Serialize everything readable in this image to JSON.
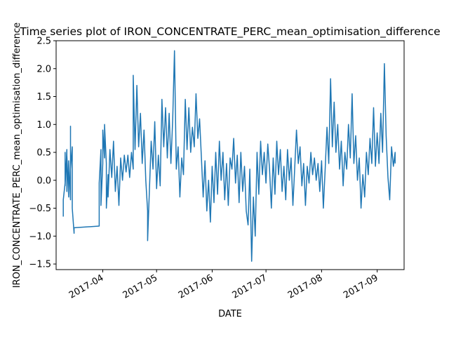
{
  "chart_data": {
    "type": "line",
    "title": "Time series plot of IRON_CONCENTRATE_PERC_mean_optimisation_difference",
    "xlabel": "DATE",
    "ylabel": "IRON_CONCENTRATE_PERC_mean_optimisation_difference",
    "xlim": [
      "2017-03-06",
      "2017-09-16"
    ],
    "ylim": [
      -1.6,
      2.5
    ],
    "grid": false,
    "legend": "none",
    "x_ticks": [
      "2017-04",
      "2017-05",
      "2017-06",
      "2017-07",
      "2017-08",
      "2017-09"
    ],
    "y_ticks": [
      "−1.5",
      "−1.0",
      "−0.5",
      "0.0",
      "0.5",
      "1.0",
      "1.5",
      "2.0",
      "2.5"
    ],
    "series": [
      {
        "color": "#1f77b4",
        "points": [
          [
            "2017-03-10",
            -0.65
          ],
          [
            "2017-03-10",
            -0.35
          ],
          [
            "2017-03-11",
            -0.05
          ],
          [
            "2017-03-11",
            0.5
          ],
          [
            "2017-03-11",
            -0.1
          ],
          [
            "2017-03-12",
            0.55
          ],
          [
            "2017-03-12",
            -0.2
          ],
          [
            "2017-03-12",
            0.45
          ],
          [
            "2017-03-13",
            -0.3
          ],
          [
            "2017-03-13",
            0.35
          ],
          [
            "2017-03-14",
            -0.35
          ],
          [
            "2017-03-14",
            0.97
          ],
          [
            "2017-03-14",
            0.2
          ],
          [
            "2017-03-15",
            0.6
          ],
          [
            "2017-03-15",
            -0.5
          ],
          [
            "2017-03-16",
            -0.95
          ],
          [
            "2017-03-16",
            -0.85
          ],
          [
            "2017-03-30",
            -0.82
          ],
          [
            "2017-03-30",
            -0.05
          ],
          [
            "2017-03-31",
            0.55
          ],
          [
            "2017-03-31",
            -0.45
          ],
          [
            "2017-04-01",
            0.3
          ],
          [
            "2017-04-01",
            0.9
          ],
          [
            "2017-04-02",
            0.4
          ],
          [
            "2017-04-02",
            1.0
          ],
          [
            "2017-04-03",
            0.3
          ],
          [
            "2017-04-03",
            -0.5
          ],
          [
            "2017-04-04",
            0.1
          ],
          [
            "2017-04-04",
            -0.3
          ],
          [
            "2017-04-05",
            0.55
          ],
          [
            "2017-04-06",
            0.05
          ],
          [
            "2017-04-07",
            0.7
          ],
          [
            "2017-04-08",
            -0.2
          ],
          [
            "2017-04-09",
            0.25
          ],
          [
            "2017-04-10",
            -0.45
          ],
          [
            "2017-04-11",
            0.4
          ],
          [
            "2017-04-12",
            0.0
          ],
          [
            "2017-04-13",
            0.45
          ],
          [
            "2017-04-14",
            0.15
          ],
          [
            "2017-04-15",
            0.45
          ],
          [
            "2017-04-16",
            0.05
          ],
          [
            "2017-04-17",
            0.5
          ],
          [
            "2017-04-18",
            0.2
          ],
          [
            "2017-04-18",
            1.88
          ],
          [
            "2017-04-19",
            0.55
          ],
          [
            "2017-04-20",
            1.7
          ],
          [
            "2017-04-21",
            0.6
          ],
          [
            "2017-04-22",
            1.2
          ],
          [
            "2017-04-23",
            0.3
          ],
          [
            "2017-04-24",
            0.9
          ],
          [
            "2017-04-25",
            0.0
          ],
          [
            "2017-04-26",
            -0.55
          ],
          [
            "2017-04-26",
            -1.08
          ],
          [
            "2017-04-27",
            -0.2
          ],
          [
            "2017-04-28",
            0.7
          ],
          [
            "2017-04-29",
            0.2
          ],
          [
            "2017-04-30",
            1.05
          ],
          [
            "2017-05-01",
            -0.15
          ],
          [
            "2017-05-02",
            0.45
          ],
          [
            "2017-05-03",
            -0.1
          ],
          [
            "2017-05-04",
            1.45
          ],
          [
            "2017-05-05",
            0.6
          ],
          [
            "2017-05-06",
            1.3
          ],
          [
            "2017-05-07",
            0.4
          ],
          [
            "2017-05-08",
            1.2
          ],
          [
            "2017-05-09",
            0.3
          ],
          [
            "2017-05-10",
            1.1
          ],
          [
            "2017-05-11",
            2.32
          ],
          [
            "2017-05-12",
            0.2
          ],
          [
            "2017-05-13",
            0.6
          ],
          [
            "2017-05-14",
            -0.3
          ],
          [
            "2017-05-15",
            0.4
          ],
          [
            "2017-05-16",
            0.1
          ],
          [
            "2017-05-17",
            1.45
          ],
          [
            "2017-05-18",
            0.55
          ],
          [
            "2017-05-19",
            1.3
          ],
          [
            "2017-05-20",
            0.5
          ],
          [
            "2017-05-21",
            0.95
          ],
          [
            "2017-05-22",
            0.6
          ],
          [
            "2017-05-23",
            1.55
          ],
          [
            "2017-05-24",
            0.75
          ],
          [
            "2017-05-25",
            1.1
          ],
          [
            "2017-05-26",
            0.4
          ],
          [
            "2017-05-27",
            -0.3
          ],
          [
            "2017-05-28",
            0.35
          ],
          [
            "2017-05-29",
            -0.55
          ],
          [
            "2017-05-30",
            0.0
          ],
          [
            "2017-05-31",
            -0.75
          ],
          [
            "2017-06-01",
            0.25
          ],
          [
            "2017-06-02",
            -0.4
          ],
          [
            "2017-06-03",
            0.5
          ],
          [
            "2017-06-04",
            -0.25
          ],
          [
            "2017-06-05",
            0.7
          ],
          [
            "2017-06-06",
            0.0
          ],
          [
            "2017-06-07",
            0.5
          ],
          [
            "2017-06-08",
            -0.35
          ],
          [
            "2017-06-09",
            0.3
          ],
          [
            "2017-06-10",
            -0.45
          ],
          [
            "2017-06-11",
            0.4
          ],
          [
            "2017-06-12",
            0.2
          ],
          [
            "2017-06-13",
            0.75
          ],
          [
            "2017-06-14",
            -0.05
          ],
          [
            "2017-06-15",
            0.45
          ],
          [
            "2017-06-16",
            -0.4
          ],
          [
            "2017-06-17",
            0.5
          ],
          [
            "2017-06-18",
            -0.2
          ],
          [
            "2017-06-19",
            0.25
          ],
          [
            "2017-06-20",
            -0.55
          ],
          [
            "2017-06-21",
            -0.8
          ],
          [
            "2017-06-22",
            0.2
          ],
          [
            "2017-06-23",
            -1.45
          ],
          [
            "2017-06-24",
            -0.3
          ],
          [
            "2017-06-25",
            -1.0
          ],
          [
            "2017-06-26",
            0.5
          ],
          [
            "2017-06-27",
            -0.25
          ],
          [
            "2017-06-28",
            0.7
          ],
          [
            "2017-06-29",
            0.1
          ],
          [
            "2017-06-30",
            0.5
          ],
          [
            "2017-07-01",
            -0.05
          ],
          [
            "2017-07-02",
            0.65
          ],
          [
            "2017-07-03",
            0.2
          ],
          [
            "2017-07-04",
            -0.5
          ],
          [
            "2017-07-05",
            0.4
          ],
          [
            "2017-07-06",
            -0.25
          ],
          [
            "2017-07-07",
            0.7
          ],
          [
            "2017-07-08",
            0.1
          ],
          [
            "2017-07-09",
            0.55
          ],
          [
            "2017-07-10",
            -0.2
          ],
          [
            "2017-07-11",
            0.25
          ],
          [
            "2017-07-12",
            -0.35
          ],
          [
            "2017-07-13",
            0.55
          ],
          [
            "2017-07-14",
            0.0
          ],
          [
            "2017-07-15",
            0.4
          ],
          [
            "2017-07-16",
            -0.45
          ],
          [
            "2017-07-17",
            0.2
          ],
          [
            "2017-07-18",
            0.9
          ],
          [
            "2017-07-19",
            0.3
          ],
          [
            "2017-07-20",
            0.6
          ],
          [
            "2017-07-21",
            -0.1
          ],
          [
            "2017-07-22",
            0.3
          ],
          [
            "2017-07-23",
            -0.45
          ],
          [
            "2017-07-24",
            0.25
          ],
          [
            "2017-07-25",
            -0.05
          ],
          [
            "2017-07-26",
            0.5
          ],
          [
            "2017-07-27",
            0.1
          ],
          [
            "2017-07-28",
            0.4
          ],
          [
            "2017-07-29",
            0.0
          ],
          [
            "2017-07-30",
            0.3
          ],
          [
            "2017-07-31",
            -0.2
          ],
          [
            "2017-08-01",
            0.35
          ],
          [
            "2017-08-02",
            -0.5
          ],
          [
            "2017-08-03",
            0.2
          ],
          [
            "2017-08-04",
            0.95
          ],
          [
            "2017-08-05",
            0.3
          ],
          [
            "2017-08-06",
            1.82
          ],
          [
            "2017-08-07",
            0.6
          ],
          [
            "2017-08-08",
            1.4
          ],
          [
            "2017-08-09",
            0.5
          ],
          [
            "2017-08-10",
            1.0
          ],
          [
            "2017-08-11",
            0.2
          ],
          [
            "2017-08-12",
            0.7
          ],
          [
            "2017-08-13",
            -0.1
          ],
          [
            "2017-08-14",
            0.5
          ],
          [
            "2017-08-15",
            0.2
          ],
          [
            "2017-08-16",
            1.0
          ],
          [
            "2017-08-17",
            0.4
          ],
          [
            "2017-08-18",
            1.55
          ],
          [
            "2017-08-19",
            0.3
          ],
          [
            "2017-08-20",
            0.8
          ],
          [
            "2017-08-21",
            0.0
          ],
          [
            "2017-08-22",
            0.4
          ],
          [
            "2017-08-23",
            -0.5
          ],
          [
            "2017-08-24",
            0.1
          ],
          [
            "2017-08-25",
            -0.3
          ],
          [
            "2017-08-26",
            0.5
          ],
          [
            "2017-08-27",
            0.1
          ],
          [
            "2017-08-28",
            0.75
          ],
          [
            "2017-08-29",
            0.3
          ],
          [
            "2017-08-30",
            1.3
          ],
          [
            "2017-08-31",
            0.25
          ],
          [
            "2017-09-01",
            0.85
          ],
          [
            "2017-09-02",
            0.3
          ],
          [
            "2017-09-03",
            1.2
          ],
          [
            "2017-09-04",
            0.5
          ],
          [
            "2017-09-05",
            2.09
          ],
          [
            "2017-09-06",
            0.8
          ],
          [
            "2017-09-07",
            0.05
          ],
          [
            "2017-09-08",
            -0.35
          ],
          [
            "2017-09-09",
            0.6
          ],
          [
            "2017-09-10",
            0.25
          ],
          [
            "2017-09-11",
            0.5
          ],
          [
            "2017-09-11",
            0.3
          ]
        ]
      }
    ]
  }
}
